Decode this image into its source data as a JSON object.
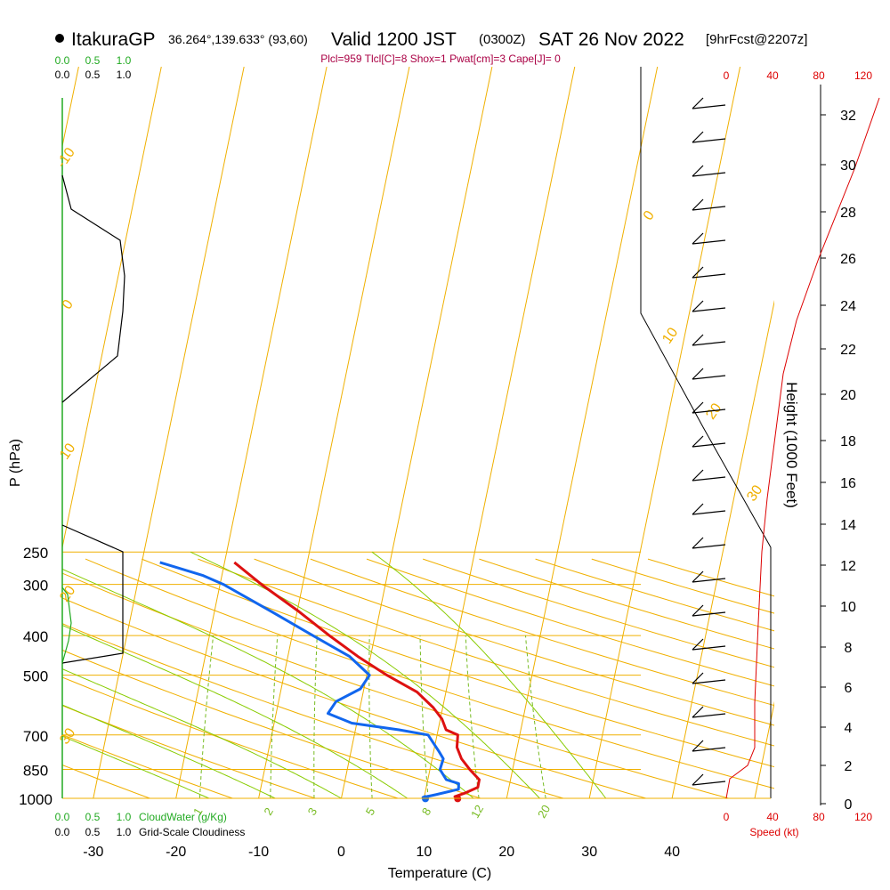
{
  "header": {
    "station": "ItakuraGP",
    "coords": "36.264°,139.633° (93,60)",
    "valid": "Valid 1200 JST",
    "zulu": "(0300Z)",
    "date": "SAT 26 Nov 2022",
    "forecast": "[9hrFcst@2207z]"
  },
  "indices": "Plcl=959 Tlcl[C]=8 Shox=1 Pwat[cm]=3 Cape[J]= 0",
  "chart_data": {
    "type": "skew-t",
    "xlabel": "Temperature (C)",
    "ylabel": "P (hPa)",
    "height_label": "Height (1000 Feet)",
    "temp_ticks": [
      "-30",
      "-20",
      "-10",
      "0",
      "10",
      "20",
      "30",
      "40"
    ],
    "temp_values": [
      -30,
      -20,
      -10,
      0,
      10,
      20,
      30,
      40
    ],
    "pressure_ticks": [
      "250",
      "300",
      "400",
      "500",
      "700",
      "850",
      "1000"
    ],
    "pressure_values": [
      250,
      300,
      400,
      500,
      700,
      850,
      1000
    ],
    "height_ticks": [
      "0",
      "2",
      "4",
      "6",
      "8",
      "10",
      "12",
      "14",
      "16",
      "18",
      "20",
      "22",
      "24",
      "26",
      "28",
      "30",
      "32"
    ],
    "speed_ticks": [
      "0",
      "40",
      "80",
      "120"
    ],
    "speed_label": "Speed (kt)",
    "cloud_ticks": [
      "0.0",
      "0.5",
      "1.0"
    ],
    "cloud_water_label": "CloudWater (g/Kg)",
    "cloudiness_label": "Grid-Scale Cloudiness",
    "temperature_profile": [
      {
        "p": 1002,
        "t": 14.1
      },
      {
        "p": 990,
        "t": 13.6
      },
      {
        "p": 970,
        "t": 14.6
      },
      {
        "p": 940,
        "t": 15.7
      },
      {
        "p": 900,
        "t": 15.3
      },
      {
        "p": 850,
        "t": 13.4
      },
      {
        "p": 800,
        "t": 11.6
      },
      {
        "p": 750,
        "t": 10.2
      },
      {
        "p": 700,
        "t": 9.4
      },
      {
        "p": 680,
        "t": 7.6
      },
      {
        "p": 640,
        "t": 6.3
      },
      {
        "p": 600,
        "t": 4.4
      },
      {
        "p": 550,
        "t": 1.3
      },
      {
        "p": 500,
        "t": -3.6
      },
      {
        "p": 450,
        "t": -8.5
      },
      {
        "p": 400,
        "t": -13.5
      },
      {
        "p": 350,
        "t": -18.9
      },
      {
        "p": 300,
        "t": -25.5
      },
      {
        "p": 265,
        "t": -30.4
      }
    ],
    "dewpoint_profile": [
      {
        "p": 1002,
        "t": 10.2
      },
      {
        "p": 995,
        "t": 9.8
      },
      {
        "p": 980,
        "t": 11.1
      },
      {
        "p": 950,
        "t": 13.5
      },
      {
        "p": 920,
        "t": 13.1
      },
      {
        "p": 900,
        "t": 11.3
      },
      {
        "p": 850,
        "t": 9.8
      },
      {
        "p": 800,
        "t": 9.4
      },
      {
        "p": 770,
        "t": 8.4
      },
      {
        "p": 700,
        "t": 5.8
      },
      {
        "p": 680,
        "t": 1.9
      },
      {
        "p": 655,
        "t": -4.3
      },
      {
        "p": 620,
        "t": -7.9
      },
      {
        "p": 580,
        "t": -7.8
      },
      {
        "p": 540,
        "t": -5.8
      },
      {
        "p": 500,
        "t": -5.7
      },
      {
        "p": 450,
        "t": -9.5
      },
      {
        "p": 400,
        "t": -15.5
      },
      {
        "p": 350,
        "t": -22.2
      },
      {
        "p": 300,
        "t": -30.1
      },
      {
        "p": 285,
        "t": -33.3
      },
      {
        "p": 265,
        "t": -39.4
      }
    ],
    "surface_temperature": 14.1,
    "surface_dewpoint": 10.2,
    "surface_pressure": 1002,
    "dry_adiabat_labels": [
      "-10",
      "0",
      "10",
      "20",
      "30",
      "0",
      "10",
      "20",
      "30"
    ],
    "mixing_ratio_labels": [
      "1",
      "2",
      "3",
      "5",
      "8",
      "12",
      "20"
    ],
    "mixing_ratios_gkg": [
      1,
      2,
      3,
      5,
      8,
      12,
      20
    ]
  },
  "colors": {
    "temperature": "#dd1111",
    "dewpoint": "#1166ee",
    "isobar": "#f0b000",
    "adiabat": "#f0b000",
    "moist_adiabat": "#88cc00",
    "mixing_ratio": "#77bb22",
    "cloud_water": "#22aa22",
    "speed": "#dd0000"
  }
}
